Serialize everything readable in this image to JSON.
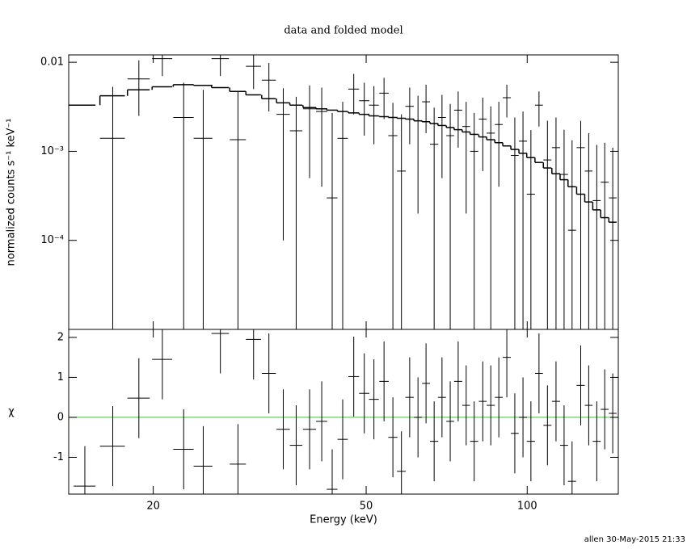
{
  "chart_data": [
    {
      "type": "errorbar",
      "title": "data and folded model",
      "ylabel": "normalized counts s⁻¹ keV⁻¹",
      "log_x": true,
      "log_y": true,
      "color": "#000000",
      "model_color": "#000000",
      "xlim": [
        13.9,
        148
      ],
      "xticks": [
        20,
        50,
        100
      ],
      "ylim": [
        1e-05,
        0.0121
      ],
      "yticks": [
        0.01,
        {
          "value": 0.001,
          "label": "10⁻³"
        },
        {
          "value": 0.0001,
          "label": "10⁻⁴"
        }
      ],
      "x": [
        14.9,
        16.8,
        18.8,
        20.8,
        22.8,
        24.8,
        26.7,
        28.8,
        30.8,
        32.9,
        35,
        37,
        39.2,
        41.3,
        43.2,
        45.2,
        47.4,
        49.6,
        51.7,
        54,
        56.1,
        58.2,
        60.3,
        62.5,
        64.7,
        67,
        69.3,
        71.8,
        74.3,
        76.9,
        79.6,
        82.6,
        85.5,
        88.5,
        91.6,
        94.8,
        98.2,
        101.6,
        105.2,
        109.1,
        113.2,
        117.2,
        121.3,
        125.9,
        130.3,
        134.9,
        139.6,
        144.5
      ],
      "xerr": [
        0.7,
        0.9,
        0.9,
        0.9,
        1.0,
        1.0,
        1.0,
        1.0,
        1.0,
        1.0,
        1.0,
        1.0,
        1.1,
        1.0,
        1.0,
        1.0,
        1.1,
        1.1,
        1.1,
        1.1,
        1.1,
        1.1,
        1.1,
        1.1,
        1.1,
        1.2,
        1.2,
        1.2,
        1.3,
        1.3,
        1.4,
        1.4,
        1.5,
        1.5,
        1.6,
        1.6,
        1.7,
        1.8,
        1.8,
        1.9,
        2.0,
        2.0,
        2.1,
        2.2,
        2.2,
        2.3,
        2.4,
        2.4
      ],
      "values": [
        null,
        0.0014,
        0.0065,
        0.011,
        0.0024,
        0.0014,
        0.011,
        0.00135,
        0.009,
        0.0063,
        0.0026,
        0.0017,
        0.003,
        0.0028,
        0.0003,
        0.0014,
        0.005,
        0.0037,
        0.0033,
        0.0045,
        0.0015,
        0.0006,
        0.0032,
        0.0022,
        0.0036,
        0.0012,
        0.0024,
        0.0015,
        0.0029,
        0.0019,
        0.001,
        0.0023,
        0.0016,
        0.002,
        0.004,
        0.0009,
        0.0013,
        0.00033,
        0.0033,
        0.0008,
        0.0011,
        0.00055,
        0.00013,
        0.0011,
        0.0006,
        0.00028,
        0.00045,
        0.0003
      ],
      "yerr": [
        null,
        0.0039,
        0.004,
        0.004,
        0.0035,
        0.0035,
        0.004,
        0.0033,
        0.004,
        0.0035,
        0.0025,
        0.0024,
        0.0025,
        0.0024,
        0.0024,
        0.0022,
        0.0024,
        0.0022,
        0.0021,
        0.0022,
        0.002,
        0.002,
        0.002,
        0.002,
        0.002,
        0.0019,
        0.0019,
        0.0019,
        0.0018,
        0.0017,
        0.0017,
        0.0017,
        0.0016,
        0.0016,
        0.0016,
        0.0015,
        0.0015,
        0.0014,
        0.0014,
        0.0014,
        0.0013,
        0.0012,
        0.0012,
        0.0011,
        0.001,
        0.0009,
        0.0008,
        0.0008
      ],
      "model": [
        0.0033,
        0.0042,
        0.0049,
        0.0053,
        0.0056,
        0.0055,
        0.0052,
        0.0047,
        0.0043,
        0.0039,
        0.0035,
        0.0033,
        0.0031,
        0.003,
        0.0029,
        0.0028,
        0.0027,
        0.0026,
        0.0025,
        0.00245,
        0.0024,
        0.00235,
        0.0023,
        0.0022,
        0.00215,
        0.00205,
        0.00195,
        0.00185,
        0.00175,
        0.00165,
        0.00155,
        0.00145,
        0.00135,
        0.00125,
        0.00115,
        0.00105,
        0.00095,
        0.00085,
        0.00075,
        0.00065,
        0.00056,
        0.00048,
        0.0004,
        0.00033,
        0.00027,
        0.00022,
        0.00018,
        0.00016
      ]
    },
    {
      "type": "errorbar",
      "xlabel": "Energy (keV)",
      "ylabel": "χ",
      "log_x": true,
      "color": "#000000",
      "xlim": [
        13.9,
        148
      ],
      "xticks": [
        20,
        50,
        100
      ],
      "ylim": [
        -1.92,
        2.2
      ],
      "yticks": [
        -1,
        0,
        1,
        2
      ],
      "reference": 0,
      "reference_color": "#33cc33",
      "values": [
        -1.72,
        -0.72,
        0.48,
        1.45,
        -0.8,
        -1.22,
        2.1,
        -1.17,
        1.95,
        1.1,
        -0.3,
        -0.7,
        -0.3,
        -0.1,
        -1.8,
        -0.55,
        1.02,
        0.6,
        0.45,
        0.9,
        -0.5,
        -1.35,
        0.5,
        0,
        0.85,
        -0.6,
        0.5,
        -0.1,
        0.9,
        0.3,
        -0.6,
        0.4,
        0.3,
        0.5,
        1.5,
        -0.4,
        0,
        -0.6,
        1.1,
        -0.2,
        0.4,
        -0.7,
        -1.6,
        0.8,
        0.3,
        -0.6,
        0.2,
        0.1
      ],
      "yerr": [
        1,
        1,
        1,
        1,
        1,
        1,
        1,
        1,
        1,
        1,
        1,
        1,
        1,
        1,
        1,
        1,
        1,
        1,
        1,
        1,
        1,
        1,
        1,
        1,
        1,
        1,
        1,
        1,
        1,
        1,
        1,
        1,
        1,
        1,
        1,
        1,
        1,
        1,
        1,
        1,
        1,
        1,
        1,
        1,
        1,
        1,
        1,
        1
      ]
    }
  ],
  "footer": "allen 30-May-2015 21:33"
}
